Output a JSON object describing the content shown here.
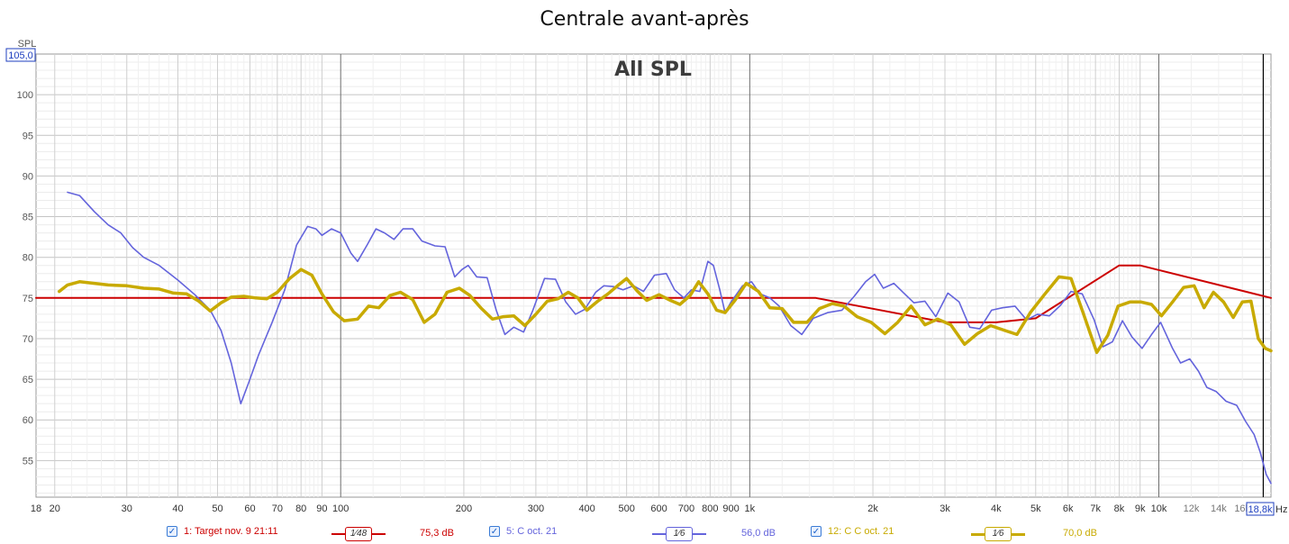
{
  "title": "Centrale avant-après",
  "chart_data": {
    "type": "line",
    "title": "Centrale avant-après",
    "annotation": "All SPL",
    "ylabel": "SPL",
    "ylabel_top_value": "105,0",
    "ylim": [
      50.5,
      105
    ],
    "xlim": [
      18,
      18800
    ],
    "x_scale": "log",
    "xunit": "Hz",
    "x_cursor_label": "18,8k",
    "grid": true,
    "y_ticks": [
      55,
      60,
      65,
      70,
      75,
      80,
      85,
      90,
      95,
      100
    ],
    "x_ticks": [
      {
        "v": 18,
        "t": "18"
      },
      {
        "v": 20,
        "t": "20"
      },
      {
        "v": 30,
        "t": "30"
      },
      {
        "v": 40,
        "t": "40"
      },
      {
        "v": 50,
        "t": "50"
      },
      {
        "v": 60,
        "t": "60"
      },
      {
        "v": 70,
        "t": "70"
      },
      {
        "v": 80,
        "t": "80"
      },
      {
        "v": 90,
        "t": "90"
      },
      {
        "v": 100,
        "t": "100"
      },
      {
        "v": 200,
        "t": "200"
      },
      {
        "v": 300,
        "t": "300"
      },
      {
        "v": 400,
        "t": "400"
      },
      {
        "v": 500,
        "t": "500"
      },
      {
        "v": 600,
        "t": "600"
      },
      {
        "v": 700,
        "t": "700"
      },
      {
        "v": 800,
        "t": "800"
      },
      {
        "v": 900,
        "t": "900"
      },
      {
        "v": 1000,
        "t": "1k"
      },
      {
        "v": 2000,
        "t": "2k"
      },
      {
        "v": 3000,
        "t": "3k"
      },
      {
        "v": 4000,
        "t": "4k"
      },
      {
        "v": 5000,
        "t": "5k"
      },
      {
        "v": 6000,
        "t": "6k"
      },
      {
        "v": 7000,
        "t": "7k"
      },
      {
        "v": 8000,
        "t": "8k"
      },
      {
        "v": 9000,
        "t": "9k"
      },
      {
        "v": 10000,
        "t": "10k"
      },
      {
        "v": 12000,
        "t": "12k"
      },
      {
        "v": 14000,
        "t": "14k"
      },
      {
        "v": 16000,
        "t": "16k"
      }
    ],
    "series": [
      {
        "name": "1: Target nov. 9 21:11",
        "color": "#cc0000",
        "stroke": 2,
        "points": [
          [
            18,
            75
          ],
          [
            1450,
            75
          ],
          [
            3000,
            72
          ],
          [
            4000,
            72
          ],
          [
            5000,
            72.5
          ],
          [
            8000,
            79
          ],
          [
            9000,
            79
          ],
          [
            18800,
            75
          ]
        ]
      },
      {
        "name": "5: C oct. 21",
        "color": "#6464dc",
        "stroke": 1.6,
        "points": [
          [
            21.5,
            88
          ],
          [
            23,
            87.6
          ],
          [
            25,
            85.6
          ],
          [
            27,
            84
          ],
          [
            29,
            83
          ],
          [
            31,
            81.2
          ],
          [
            33,
            80
          ],
          [
            36,
            79
          ],
          [
            40,
            77.2
          ],
          [
            44,
            75.4
          ],
          [
            48,
            73.5
          ],
          [
            51,
            71
          ],
          [
            54,
            67
          ],
          [
            57,
            62
          ],
          [
            59.5,
            64.5
          ],
          [
            63,
            68
          ],
          [
            68,
            72
          ],
          [
            73,
            76
          ],
          [
            78,
            81.5
          ],
          [
            83,
            83.8
          ],
          [
            87,
            83.5
          ],
          [
            90,
            82.7
          ],
          [
            95,
            83.5
          ],
          [
            100,
            83
          ],
          [
            106,
            80.5
          ],
          [
            110,
            79.5
          ],
          [
            116,
            81.5
          ],
          [
            122,
            83.5
          ],
          [
            128,
            83
          ],
          [
            135,
            82.2
          ],
          [
            142,
            83.5
          ],
          [
            150,
            83.5
          ],
          [
            158,
            82
          ],
          [
            170,
            81.4
          ],
          [
            180,
            81.3
          ],
          [
            190,
            77.6
          ],
          [
            198,
            78.5
          ],
          [
            205,
            79
          ],
          [
            215,
            77.6
          ],
          [
            228,
            77.5
          ],
          [
            240,
            73.5
          ],
          [
            252,
            70.5
          ],
          [
            265,
            71.4
          ],
          [
            280,
            70.8
          ],
          [
            295,
            73.5
          ],
          [
            315,
            77.4
          ],
          [
            335,
            77.3
          ],
          [
            355,
            74.5
          ],
          [
            375,
            73
          ],
          [
            395,
            73.6
          ],
          [
            420,
            75.7
          ],
          [
            440,
            76.5
          ],
          [
            465,
            76.4
          ],
          [
            490,
            76
          ],
          [
            520,
            76.5
          ],
          [
            550,
            75.8
          ],
          [
            585,
            77.8
          ],
          [
            625,
            78
          ],
          [
            655,
            76
          ],
          [
            690,
            75
          ],
          [
            720,
            76
          ],
          [
            755,
            75.8
          ],
          [
            790,
            79.5
          ],
          [
            815,
            79
          ],
          [
            845,
            76
          ],
          [
            870,
            73.2
          ],
          [
            900,
            74.5
          ],
          [
            960,
            76.5
          ],
          [
            1010,
            77
          ],
          [
            1060,
            75.5
          ],
          [
            1120,
            75
          ],
          [
            1180,
            74
          ],
          [
            1260,
            71.6
          ],
          [
            1340,
            70.5
          ],
          [
            1430,
            72.5
          ],
          [
            1550,
            73.2
          ],
          [
            1680,
            73.5
          ],
          [
            1800,
            75.2
          ],
          [
            1920,
            77
          ],
          [
            2020,
            77.9
          ],
          [
            2120,
            76.2
          ],
          [
            2250,
            76.8
          ],
          [
            2380,
            75.6
          ],
          [
            2520,
            74.4
          ],
          [
            2680,
            74.6
          ],
          [
            2850,
            72.7
          ],
          [
            3050,
            75.6
          ],
          [
            3250,
            74.5
          ],
          [
            3450,
            71.4
          ],
          [
            3650,
            71.2
          ],
          [
            3900,
            73.5
          ],
          [
            4150,
            73.8
          ],
          [
            4450,
            74
          ],
          [
            4750,
            72.3
          ],
          [
            5050,
            73
          ],
          [
            5400,
            72.8
          ],
          [
            5750,
            74.1
          ],
          [
            6100,
            75.8
          ],
          [
            6500,
            75.5
          ],
          [
            6950,
            72.3
          ],
          [
            7300,
            69
          ],
          [
            7700,
            69.6
          ],
          [
            8150,
            72.2
          ],
          [
            8600,
            70.2
          ],
          [
            9100,
            68.8
          ],
          [
            9600,
            70.5
          ],
          [
            10100,
            72
          ],
          [
            10800,
            68.8
          ],
          [
            11300,
            67
          ],
          [
            11900,
            67.5
          ],
          [
            12500,
            66
          ],
          [
            13100,
            64
          ],
          [
            13800,
            63.5
          ],
          [
            14600,
            62.3
          ],
          [
            15500,
            61.8
          ],
          [
            16300,
            59.8
          ],
          [
            17100,
            58.2
          ],
          [
            17700,
            56
          ],
          [
            18300,
            53.3
          ],
          [
            18800,
            52.2
          ]
        ]
      },
      {
        "name": "12: C C oct. 21",
        "color": "#c8aa00",
        "stroke": 3.5,
        "points": [
          [
            20.5,
            75.8
          ],
          [
            21.5,
            76.6
          ],
          [
            23,
            77
          ],
          [
            25,
            76.8
          ],
          [
            27,
            76.6
          ],
          [
            30,
            76.5
          ],
          [
            33,
            76.2
          ],
          [
            36,
            76.1
          ],
          [
            39,
            75.6
          ],
          [
            42,
            75.5
          ],
          [
            45,
            74.6
          ],
          [
            48,
            73.4
          ],
          [
            51,
            74.4
          ],
          [
            54,
            75.1
          ],
          [
            58,
            75.2
          ],
          [
            62,
            75
          ],
          [
            66,
            74.9
          ],
          [
            70,
            75.7
          ],
          [
            75,
            77.4
          ],
          [
            80,
            78.5
          ],
          [
            85,
            77.8
          ],
          [
            90,
            75.5
          ],
          [
            96,
            73.3
          ],
          [
            102,
            72.2
          ],
          [
            110,
            72.4
          ],
          [
            117,
            74
          ],
          [
            124,
            73.8
          ],
          [
            132,
            75.3
          ],
          [
            140,
            75.7
          ],
          [
            150,
            74.8
          ],
          [
            160,
            72
          ],
          [
            170,
            73
          ],
          [
            182,
            75.7
          ],
          [
            195,
            76.2
          ],
          [
            207,
            75.3
          ],
          [
            220,
            73.8
          ],
          [
            235,
            72.4
          ],
          [
            250,
            72.7
          ],
          [
            265,
            72.8
          ],
          [
            282,
            71.6
          ],
          [
            300,
            73
          ],
          [
            320,
            74.6
          ],
          [
            340,
            74.9
          ],
          [
            360,
            75.7
          ],
          [
            380,
            75
          ],
          [
            400,
            73.5
          ],
          [
            425,
            74.6
          ],
          [
            450,
            75.5
          ],
          [
            475,
            76.5
          ],
          [
            500,
            77.4
          ],
          [
            530,
            75.9
          ],
          [
            560,
            74.7
          ],
          [
            600,
            75.4
          ],
          [
            640,
            74.7
          ],
          [
            675,
            74.2
          ],
          [
            715,
            75.3
          ],
          [
            750,
            77
          ],
          [
            790,
            75.5
          ],
          [
            830,
            73.5
          ],
          [
            870,
            73.2
          ],
          [
            920,
            74.7
          ],
          [
            980,
            76.8
          ],
          [
            1050,
            75.8
          ],
          [
            1120,
            73.8
          ],
          [
            1200,
            73.7
          ],
          [
            1280,
            72
          ],
          [
            1380,
            72
          ],
          [
            1480,
            73.7
          ],
          [
            1590,
            74.3
          ],
          [
            1700,
            74
          ],
          [
            1830,
            72.7
          ],
          [
            1980,
            72
          ],
          [
            2140,
            70.6
          ],
          [
            2300,
            72
          ],
          [
            2480,
            74
          ],
          [
            2680,
            71.7
          ],
          [
            2880,
            72.4
          ],
          [
            3100,
            71.7
          ],
          [
            3350,
            69.3
          ],
          [
            3600,
            70.6
          ],
          [
            3880,
            71.6
          ],
          [
            4200,
            71
          ],
          [
            4500,
            70.5
          ],
          [
            4850,
            73.2
          ],
          [
            5250,
            75.4
          ],
          [
            5700,
            77.6
          ],
          [
            6100,
            77.4
          ],
          [
            6550,
            73
          ],
          [
            7050,
            68.3
          ],
          [
            7500,
            70.4
          ],
          [
            7950,
            74
          ],
          [
            8500,
            74.5
          ],
          [
            9050,
            74.5
          ],
          [
            9600,
            74.2
          ],
          [
            10150,
            72.8
          ],
          [
            10800,
            74.5
          ],
          [
            11500,
            76.3
          ],
          [
            12200,
            76.5
          ],
          [
            12900,
            73.8
          ],
          [
            13600,
            75.7
          ],
          [
            14400,
            74.5
          ],
          [
            15200,
            72.6
          ],
          [
            16000,
            74.5
          ],
          [
            16800,
            74.6
          ],
          [
            17500,
            70
          ],
          [
            18200,
            68.8
          ],
          [
            18800,
            68.5
          ]
        ]
      }
    ]
  },
  "legend": [
    {
      "check": "✓",
      "label": "1: Target nov. 9 21:11",
      "smoothing": "1⁄48",
      "db": "75,3 dB",
      "color": "#cc0000"
    },
    {
      "check": "✓",
      "label": "5: C oct. 21",
      "smoothing": "1⁄6",
      "db": "56,0 dB",
      "color": "#6464dc"
    },
    {
      "check": "✓",
      "label": "12: C C oct. 21",
      "smoothing": "1⁄6",
      "db": "70,0 dB",
      "color": "#c8aa00"
    }
  ]
}
